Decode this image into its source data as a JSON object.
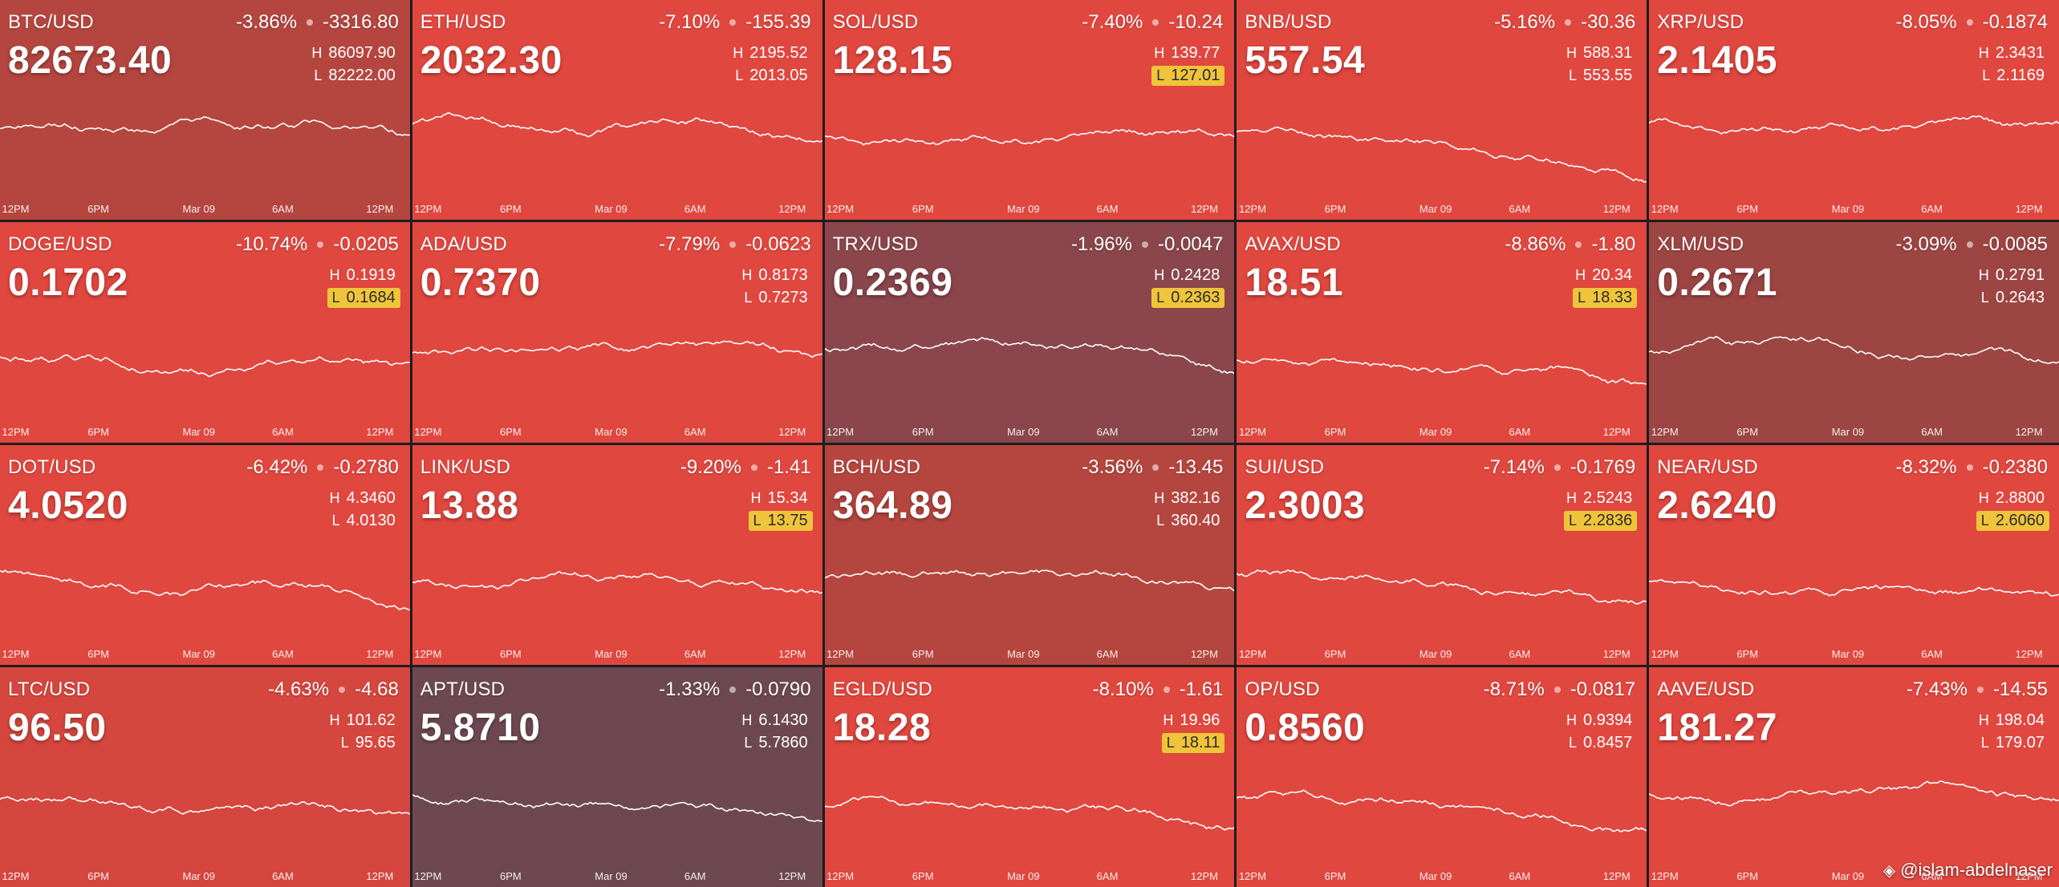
{
  "colors": {
    "red": "#e0473f",
    "muted_red": "#b5463f",
    "maroon": "#8a464b",
    "dark_maroon": "#6d4851",
    "low_badge": "#f0c43a"
  },
  "time_labels": [
    "12PM",
    "6PM",
    "Mar 09",
    "6AM",
    "12PM"
  ],
  "tiles": [
    {
      "symbol": "BTC/USD",
      "pct": "-3.86%",
      "change": "-3316.80",
      "price": "82673.40",
      "h_label": "H",
      "high": "86097.90",
      "l_label": "L",
      "low": "82222.00",
      "low_hit": false,
      "bg": "#b5463f"
    },
    {
      "symbol": "ETH/USD",
      "pct": "-7.10%",
      "change": "-155.39",
      "price": "2032.30",
      "h_label": "H",
      "high": "2195.52",
      "l_label": "L",
      "low": "2013.05",
      "low_hit": false,
      "bg": "#e0473f"
    },
    {
      "symbol": "SOL/USD",
      "pct": "-7.40%",
      "change": "-10.24",
      "price": "128.15",
      "h_label": "H",
      "high": "139.77",
      "l_label": "L",
      "low": "127.01",
      "low_hit": true,
      "bg": "#e0473f"
    },
    {
      "symbol": "BNB/USD",
      "pct": "-5.16%",
      "change": "-30.36",
      "price": "557.54",
      "h_label": "H",
      "high": "588.31",
      "l_label": "L",
      "low": "553.55",
      "low_hit": false,
      "bg": "#e0473f"
    },
    {
      "symbol": "XRP/USD",
      "pct": "-8.05%",
      "change": "-0.1874",
      "price": "2.1405",
      "h_label": "H",
      "high": "2.3431",
      "l_label": "L",
      "low": "2.1169",
      "low_hit": false,
      "bg": "#e0473f"
    },
    {
      "symbol": "DOGE/USD",
      "pct": "-10.74%",
      "change": "-0.0205",
      "price": "0.1702",
      "h_label": "H",
      "high": "0.1919",
      "l_label": "L",
      "low": "0.1684",
      "low_hit": true,
      "bg": "#e0473f"
    },
    {
      "symbol": "ADA/USD",
      "pct": "-7.79%",
      "change": "-0.0623",
      "price": "0.7370",
      "h_label": "H",
      "high": "0.8173",
      "l_label": "L",
      "low": "0.7273",
      "low_hit": false,
      "bg": "#e0473f"
    },
    {
      "symbol": "TRX/USD",
      "pct": "-1.96%",
      "change": "-0.0047",
      "price": "0.2369",
      "h_label": "H",
      "high": "0.2428",
      "l_label": "L",
      "low": "0.2363",
      "low_hit": true,
      "bg": "#8a464b"
    },
    {
      "symbol": "AVAX/USD",
      "pct": "-8.86%",
      "change": "-1.80",
      "price": "18.51",
      "h_label": "H",
      "high": "20.34",
      "l_label": "L",
      "low": "18.33",
      "low_hit": true,
      "bg": "#e0473f"
    },
    {
      "symbol": "XLM/USD",
      "pct": "-3.09%",
      "change": "-0.0085",
      "price": "0.2671",
      "h_label": "H",
      "high": "0.2791",
      "l_label": "L",
      "low": "0.2643",
      "low_hit": false,
      "bg": "#9c4543"
    },
    {
      "symbol": "DOT/USD",
      "pct": "-6.42%",
      "change": "-0.2780",
      "price": "4.0520",
      "h_label": "H",
      "high": "4.3460",
      "l_label": "L",
      "low": "4.0130",
      "low_hit": false,
      "bg": "#e0473f"
    },
    {
      "symbol": "LINK/USD",
      "pct": "-9.20%",
      "change": "-1.41",
      "price": "13.88",
      "h_label": "H",
      "high": "15.34",
      "l_label": "L",
      "low": "13.75",
      "low_hit": true,
      "bg": "#e0473f"
    },
    {
      "symbol": "BCH/USD",
      "pct": "-3.56%",
      "change": "-13.45",
      "price": "364.89",
      "h_label": "H",
      "high": "382.16",
      "l_label": "L",
      "low": "360.40",
      "low_hit": false,
      "bg": "#b5463f"
    },
    {
      "symbol": "SUI/USD",
      "pct": "-7.14%",
      "change": "-0.1769",
      "price": "2.3003",
      "h_label": "H",
      "high": "2.5243",
      "l_label": "L",
      "low": "2.2836",
      "low_hit": true,
      "bg": "#e0473f"
    },
    {
      "symbol": "NEAR/USD",
      "pct": "-8.32%",
      "change": "-0.2380",
      "price": "2.6240",
      "h_label": "H",
      "high": "2.8800",
      "l_label": "L",
      "low": "2.6060",
      "low_hit": true,
      "bg": "#e0473f"
    },
    {
      "symbol": "LTC/USD",
      "pct": "-4.63%",
      "change": "-4.68",
      "price": "96.50",
      "h_label": "H",
      "high": "101.62",
      "l_label": "L",
      "low": "95.65",
      "low_hit": false,
      "bg": "#d4463e"
    },
    {
      "symbol": "APT/USD",
      "pct": "-1.33%",
      "change": "-0.0790",
      "price": "5.8710",
      "h_label": "H",
      "high": "6.1430",
      "l_label": "L",
      "low": "5.7860",
      "low_hit": false,
      "bg": "#6d4851"
    },
    {
      "symbol": "EGLD/USD",
      "pct": "-8.10%",
      "change": "-1.61",
      "price": "18.28",
      "h_label": "H",
      "high": "19.96",
      "l_label": "L",
      "low": "18.11",
      "low_hit": true,
      "bg": "#e0473f"
    },
    {
      "symbol": "OP/USD",
      "pct": "-8.71%",
      "change": "-0.0817",
      "price": "0.8560",
      "h_label": "H",
      "high": "0.9394",
      "l_label": "L",
      "low": "0.8457",
      "low_hit": false,
      "bg": "#e0473f"
    },
    {
      "symbol": "AAVE/USD",
      "pct": "-7.43%",
      "change": "-14.55",
      "price": "181.27",
      "h_label": "H",
      "high": "198.04",
      "l_label": "L",
      "low": "179.07",
      "low_hit": false,
      "bg": "#e0473f"
    }
  ],
  "watermark": {
    "icon": "binance-icon",
    "text": "@islam-abdelnaser"
  }
}
